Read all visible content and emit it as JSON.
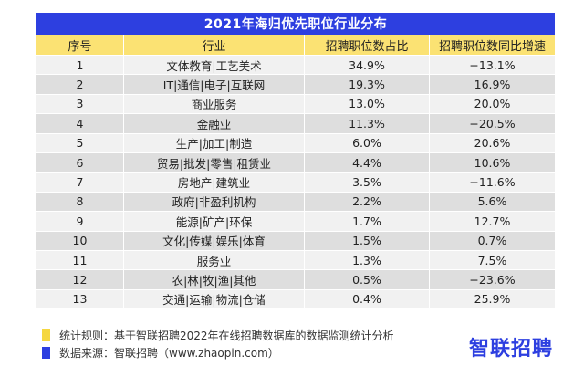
{
  "title": "2021年海归优先职位行业分布",
  "colors": {
    "title_bg": "#2d3fe0",
    "header_bg": "#fbe273",
    "note_yellow": "#f5d740",
    "note_blue": "#2d3fe0",
    "logo": "#2d3fe0"
  },
  "headers": {
    "index": "序号",
    "industry": "行业",
    "share": "招聘职位数占比",
    "yoy": "招聘职位数同比增速"
  },
  "rows": [
    {
      "index": "1",
      "industry": "文体教育|工艺美术",
      "share": "34.9%",
      "yoy": "−13.1%"
    },
    {
      "index": "2",
      "industry": "IT|通信|电子|互联网",
      "share": "19.3%",
      "yoy": "16.9%"
    },
    {
      "index": "3",
      "industry": "商业服务",
      "share": "13.0%",
      "yoy": "20.0%"
    },
    {
      "index": "4",
      "industry": "金融业",
      "share": "11.3%",
      "yoy": "−20.5%"
    },
    {
      "index": "5",
      "industry": "生产|加工|制造",
      "share": "6.0%",
      "yoy": "20.6%"
    },
    {
      "index": "6",
      "industry": "贸易|批发|零售|租赁业",
      "share": "4.4%",
      "yoy": "10.6%"
    },
    {
      "index": "7",
      "industry": "房地产|建筑业",
      "share": "3.5%",
      "yoy": "−11.6%"
    },
    {
      "index": "8",
      "industry": "政府|非盈利机构",
      "share": "2.2%",
      "yoy": "5.6%"
    },
    {
      "index": "9",
      "industry": "能源|矿产|环保",
      "share": "1.7%",
      "yoy": "12.7%"
    },
    {
      "index": "10",
      "industry": "文化|传媒|娱乐|体育",
      "share": "1.5%",
      "yoy": "0.7%"
    },
    {
      "index": "11",
      "industry": "服务业",
      "share": "1.3%",
      "yoy": "7.5%"
    },
    {
      "index": "12",
      "industry": "农|林|牧|渔|其他",
      "share": "0.5%",
      "yoy": "−23.6%"
    },
    {
      "index": "13",
      "industry": "交通|运输|物流|仓储",
      "share": "0.4%",
      "yoy": "25.9%"
    }
  ],
  "notes": {
    "rule": "统计规则：基于智联招聘2022年在线招聘数据库的数据监测统计分析",
    "source": "数据来源：智联招聘（www.zhaopin.com）"
  },
  "logo_text": "智联招聘"
}
